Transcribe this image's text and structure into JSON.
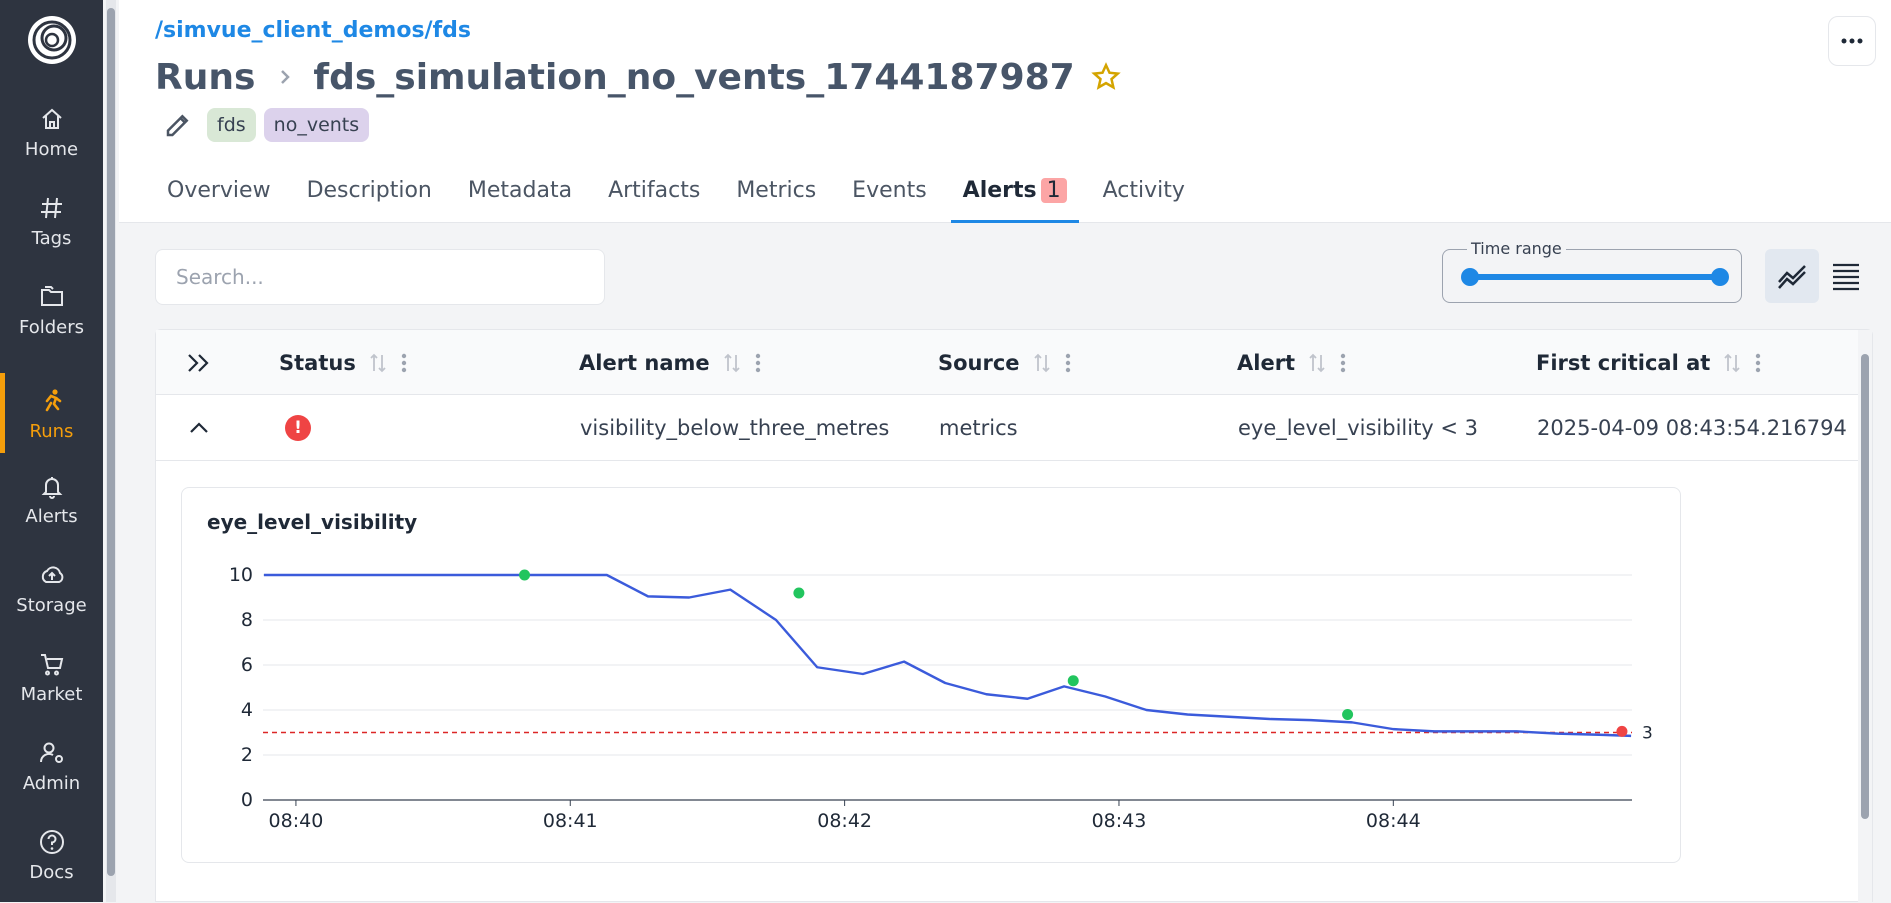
{
  "sidebar": {
    "items": [
      {
        "label": "Home",
        "icon": "home-icon"
      },
      {
        "label": "Tags",
        "icon": "hash-icon"
      },
      {
        "label": "Folders",
        "icon": "folders-icon"
      },
      {
        "label": "Runs",
        "icon": "runner-icon",
        "active": true
      },
      {
        "label": "Alerts",
        "icon": "bell-icon"
      },
      {
        "label": "Storage",
        "icon": "cloud-upload-icon"
      },
      {
        "label": "Market",
        "icon": "cart-icon"
      },
      {
        "label": "Admin",
        "icon": "user-gear-icon"
      },
      {
        "label": "Docs",
        "icon": "help-circle-icon"
      }
    ],
    "active_color": "#f59e0b"
  },
  "header": {
    "path": "/simvue_client_demos/fds",
    "breadcrumb_root": "Runs",
    "run_name": "fds_simulation_no_vents_1744187987",
    "tags": [
      "fds",
      "no_vents"
    ]
  },
  "tabs": [
    {
      "label": "Overview"
    },
    {
      "label": "Description"
    },
    {
      "label": "Metadata"
    },
    {
      "label": "Artifacts"
    },
    {
      "label": "Metrics"
    },
    {
      "label": "Events"
    },
    {
      "label": "Alerts",
      "badge": "1",
      "active": true
    },
    {
      "label": "Activity"
    }
  ],
  "toolbar": {
    "search_placeholder": "Search...",
    "time_range_label": "Time range"
  },
  "table": {
    "columns": [
      "Status",
      "Alert name",
      "Source",
      "Alert",
      "First critical at"
    ],
    "rows": [
      {
        "status": "critical",
        "alert_name": "visibility_below_three_metres",
        "source": "metrics",
        "alert": "eye_level_visibility < 3",
        "first_critical_at": "2025-04-09 08:43:54.216794"
      }
    ]
  },
  "chart_data": {
    "type": "line",
    "title": "eye_level_visibility",
    "x_ticks": [
      "08:40",
      "08:41",
      "08:42",
      "08:43",
      "08:44"
    ],
    "y_ticks": [
      0,
      2,
      4,
      6,
      8,
      10
    ],
    "ylim": [
      0,
      10
    ],
    "xlim_minutes_after_0840": [
      -0.12,
      4.87
    ],
    "series": [
      {
        "color": "#3b5bdb",
        "x": [
          "08:39:53",
          "08:40:30",
          "08:41:00",
          "08:41:08",
          "08:41:17",
          "08:41:26",
          "08:41:35",
          "08:41:45",
          "08:41:54",
          "08:42:04",
          "08:42:13",
          "08:42:22",
          "08:42:31",
          "08:42:40",
          "08:42:48",
          "08:42:57",
          "08:43:06",
          "08:43:15",
          "08:43:24",
          "08:43:33",
          "08:43:42",
          "08:43:51",
          "08:44:00",
          "08:44:09",
          "08:44:18",
          "08:44:27",
          "08:44:36",
          "08:44:45",
          "08:44:52"
        ],
        "y": [
          10,
          10,
          10,
          10,
          9.05,
          9.0,
          9.35,
          8.0,
          5.9,
          5.6,
          6.15,
          5.2,
          4.7,
          4.5,
          5.05,
          4.6,
          4.0,
          3.8,
          3.7,
          3.6,
          3.55,
          3.45,
          3.15,
          3.05,
          3.05,
          3.05,
          2.95,
          2.9,
          2.85
        ]
      }
    ],
    "markers": [
      {
        "x": "08:40:50",
        "y": 10.0,
        "color": "#22c55e"
      },
      {
        "x": "08:41:50",
        "y": 9.2,
        "color": "#22c55e"
      },
      {
        "x": "08:42:50",
        "y": 5.3,
        "color": "#22c55e"
      },
      {
        "x": "08:43:50",
        "y": 3.8,
        "color": "#22c55e"
      },
      {
        "x": "08:44:50",
        "y": 3.05,
        "color": "#ef4444"
      }
    ],
    "threshold": {
      "value": 3,
      "label": "3",
      "color": "#dc2626",
      "style": "dashed"
    },
    "grid": true
  }
}
